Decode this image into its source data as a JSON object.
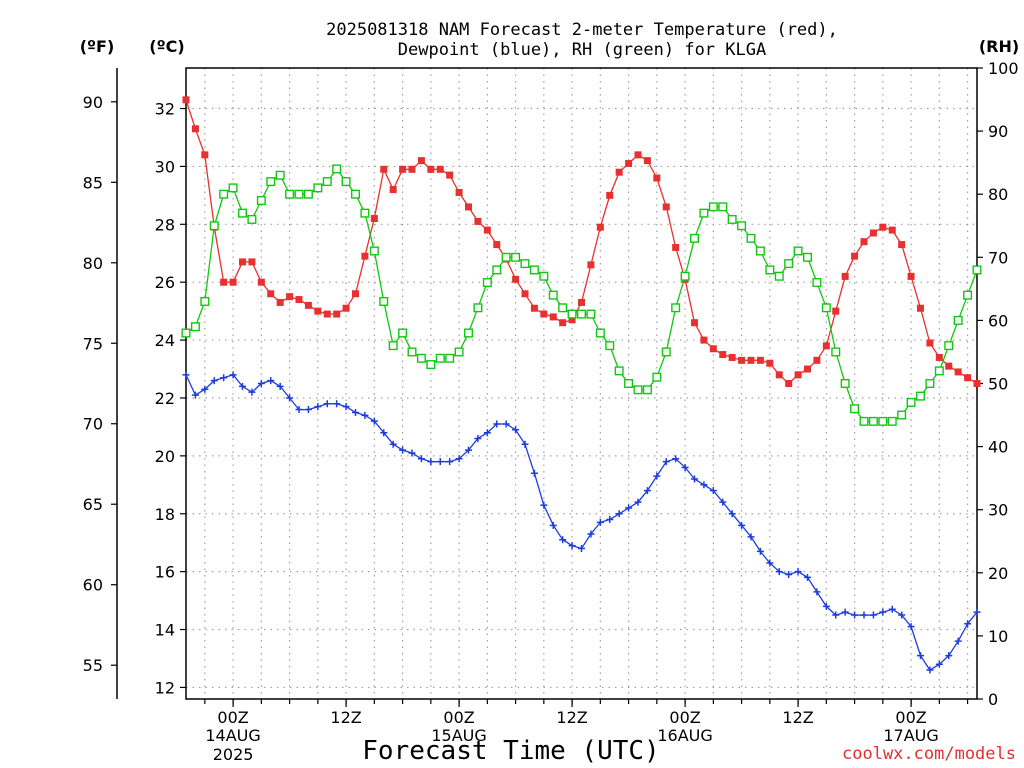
{
  "title_line1": "2025081318 NAM Forecast 2-meter Temperature (red),",
  "title_line2": "Dewpoint (blue), RH (green) for KLGA",
  "units": {
    "fahrenheit": "(ºF)",
    "celsius": "(ºC)",
    "rh": "(RH)"
  },
  "xlabel": "Forecast Time (UTC)",
  "credit": "coolwx.com/models",
  "colors": {
    "temperature": "#e83030",
    "dewpoint": "#1c3ce0",
    "rh": "#10c810",
    "grid": "#a0a0a0",
    "axis": "#000000"
  },
  "chart_data": {
    "type": "line",
    "x_unit": "forecast hour from 2025-08-13 18Z",
    "x_range": [
      1,
      85
    ],
    "grid": true,
    "x_ticks": [
      {
        "hour": 6,
        "label": "00Z",
        "sub": "14AUG",
        "sub2": "2025"
      },
      {
        "hour": 18,
        "label": "12Z",
        "sub": "",
        "sub2": ""
      },
      {
        "hour": 30,
        "label": "00Z",
        "sub": "15AUG",
        "sub2": ""
      },
      {
        "hour": 42,
        "label": "12Z",
        "sub": "",
        "sub2": ""
      },
      {
        "hour": 54,
        "label": "00Z",
        "sub": "16AUG",
        "sub2": ""
      },
      {
        "hour": 66,
        "label": "12Z",
        "sub": "",
        "sub2": ""
      },
      {
        "hour": 78,
        "label": "00Z",
        "sub": "17AUG",
        "sub2": ""
      }
    ],
    "y_celsius": {
      "range": [
        11.6,
        33.4
      ],
      "ticks": [
        "12",
        "14",
        "16",
        "18",
        "20",
        "22",
        "24",
        "26",
        "28",
        "30",
        "32"
      ]
    },
    "y_fahrenheit": {
      "range": [
        52.9,
        92.1
      ],
      "ticks": [
        "55",
        "60",
        "65",
        "70",
        "75",
        "80",
        "85",
        "90"
      ]
    },
    "y_rh": {
      "range": [
        0,
        100
      ],
      "ticks": [
        "0",
        "10",
        "20",
        "30",
        "40",
        "50",
        "60",
        "70",
        "80",
        "90",
        "100"
      ]
    },
    "series": [
      {
        "key": "temperature",
        "axis": "celsius",
        "marker": "filled-square",
        "values": [
          32.3,
          31.3,
          30.4,
          27.9,
          26.0,
          26.0,
          26.7,
          26.7,
          26.0,
          25.6,
          25.3,
          25.5,
          25.4,
          25.2,
          25.0,
          24.9,
          24.9,
          25.1,
          25.6,
          26.9,
          28.2,
          29.9,
          29.2,
          29.9,
          29.9,
          30.2,
          29.9,
          29.9,
          29.7,
          29.1,
          28.6,
          28.1,
          27.8,
          27.3,
          26.8,
          26.1,
          25.6,
          25.1,
          24.9,
          24.8,
          24.6,
          24.7,
          25.3,
          26.6,
          27.9,
          29.0,
          29.8,
          30.1,
          30.4,
          30.2,
          29.6,
          28.6,
          27.2,
          26.1,
          24.6,
          24.0,
          23.7,
          23.5,
          23.4,
          23.3,
          23.3,
          23.3,
          23.2,
          22.8,
          22.5,
          22.8,
          23.0,
          23.3,
          23.8,
          25.0,
          26.2,
          26.9,
          27.4,
          27.7,
          27.9,
          27.8,
          27.3,
          26.2,
          25.1,
          23.9,
          23.4,
          23.1,
          22.9,
          22.7,
          22.5
        ]
      },
      {
        "key": "dewpoint",
        "axis": "celsius",
        "marker": "plus",
        "values": [
          22.8,
          22.1,
          22.3,
          22.6,
          22.7,
          22.8,
          22.4,
          22.2,
          22.5,
          22.6,
          22.4,
          22.0,
          21.6,
          21.6,
          21.7,
          21.8,
          21.8,
          21.7,
          21.5,
          21.4,
          21.2,
          20.8,
          20.4,
          20.2,
          20.1,
          19.9,
          19.8,
          19.8,
          19.8,
          19.9,
          20.2,
          20.6,
          20.8,
          21.1,
          21.1,
          20.9,
          20.4,
          19.4,
          18.3,
          17.6,
          17.1,
          16.9,
          16.8,
          17.3,
          17.7,
          17.8,
          18.0,
          18.2,
          18.4,
          18.8,
          19.3,
          19.8,
          19.9,
          19.6,
          19.2,
          19.0,
          18.8,
          18.4,
          18.0,
          17.6,
          17.2,
          16.7,
          16.3,
          16.0,
          15.9,
          16.0,
          15.8,
          15.3,
          14.8,
          14.5,
          14.6,
          14.5,
          14.5,
          14.5,
          14.6,
          14.7,
          14.5,
          14.1,
          13.1,
          12.6,
          12.8,
          13.1,
          13.6,
          14.2,
          14.6
        ]
      },
      {
        "key": "rh",
        "axis": "rh",
        "marker": "open-square",
        "values": [
          58,
          59,
          63,
          75,
          80,
          81,
          77,
          76,
          79,
          82,
          83,
          80,
          80,
          80,
          81,
          82,
          84,
          82,
          80,
          77,
          71,
          63,
          56,
          58,
          55,
          54,
          53,
          54,
          54,
          55,
          58,
          62,
          66,
          68,
          70,
          70,
          69,
          68,
          67,
          64,
          62,
          61,
          61,
          61,
          58,
          56,
          52,
          50,
          49,
          49,
          51,
          55,
          62,
          67,
          73,
          77,
          78,
          78,
          76,
          75,
          73,
          71,
          68,
          67,
          69,
          71,
          70,
          66,
          62,
          55,
          50,
          46,
          44,
          44,
          44,
          44,
          45,
          47,
          48,
          50,
          52,
          56,
          60,
          64,
          68
        ]
      }
    ]
  }
}
